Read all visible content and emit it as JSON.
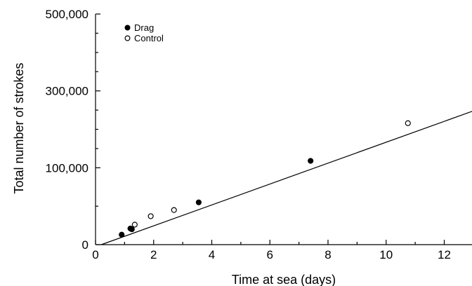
{
  "chart_data": {
    "type": "scatter",
    "title": "",
    "xlabel": "Time at sea (days)",
    "ylabel": "Total number of strokes",
    "xlim": [
      0,
      13
    ],
    "ylim": [
      0,
      500000
    ],
    "x_ticks": [
      0,
      2,
      4,
      6,
      8,
      10,
      12
    ],
    "x_tick_labels": [
      "0",
      "2",
      "4",
      "6",
      "8",
      "10",
      "12"
    ],
    "y_ticks": [
      0,
      100000,
      300000,
      500000
    ],
    "y_tick_labels": [
      "0",
      "100,000",
      "300,000",
      "500,000"
    ],
    "y_minor_ticks": [
      50000,
      150000,
      200000,
      250000,
      350000,
      400000,
      450000
    ],
    "grid": false,
    "legend_position": "top-left",
    "series": [
      {
        "name": "Drag",
        "marker": "filled-circle",
        "points": [
          {
            "x": 0.9,
            "y": 13000
          },
          {
            "x": 1.2,
            "y": 21000
          },
          {
            "x": 1.25,
            "y": 20000
          },
          {
            "x": 3.55,
            "y": 55000
          },
          {
            "x": 7.4,
            "y": 118000
          }
        ]
      },
      {
        "name": "Control",
        "marker": "open-circle",
        "points": [
          {
            "x": 1.35,
            "y": 26000
          },
          {
            "x": 1.9,
            "y": 37000
          },
          {
            "x": 2.7,
            "y": 45000
          },
          {
            "x": 10.75,
            "y": 216000
          }
        ]
      }
    ],
    "fit_line": {
      "x": [
        0.2,
        13.0
      ],
      "y": [
        0,
        248000
      ]
    }
  }
}
